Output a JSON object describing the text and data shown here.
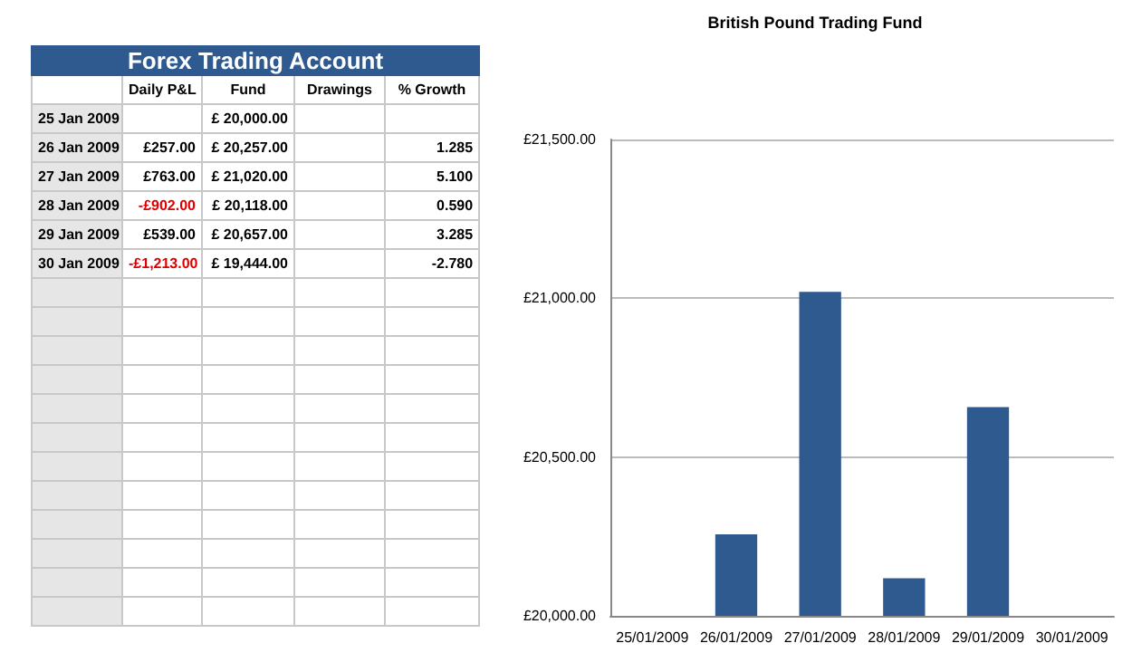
{
  "chart_data": [
    {
      "type": "other",
      "title": "Forex Trading Account",
      "categories": [
        null,
        "Daily P&L",
        "Fund",
        "Drawings",
        "% Growth"
      ],
      "y_categories": [
        "25 Jan 2009",
        "26 Jan 2009",
        "27 Jan 2009",
        "28 Jan 2009",
        "29 Jan 2009",
        "30 Jan 2009"
      ],
      "cell_labels": [
        [
          null,
          "£ 20,000.00",
          null,
          null
        ],
        [
          "£257.00",
          "£ 20,257.00",
          null,
          "1.285"
        ],
        [
          "£763.00",
          "£ 21,020.00",
          null,
          "5.100"
        ],
        [
          "-£902.00",
          "£ 20,118.00",
          null,
          "0.590"
        ],
        [
          "£539.00",
          "£ 20,657.00",
          null,
          "3.285"
        ],
        [
          "-£1,213.00",
          "£ 19,444.00",
          null,
          "-2.780"
        ]
      ]
    },
    {
      "type": "bar",
      "title": "British Pound Trading Fund",
      "categories": [
        "25/01/2009",
        "26/01/2009",
        "27/01/2009",
        "28/01/2009",
        "29/01/2009",
        "30/01/2009"
      ],
      "values": [
        20000,
        20257,
        21020,
        20118,
        20657,
        null
      ],
      "color": "#2e5a8f",
      "ylim": [
        20000,
        21500
      ],
      "yticks": [
        {
          "value": 20000,
          "label": "£20,000.00"
        },
        {
          "value": 20500,
          "label": "£20,500.00"
        },
        {
          "value": 21000,
          "label": "£21,000.00"
        },
        {
          "value": 21500,
          "label": "£21,500.00"
        }
      ],
      "grid": "y"
    }
  ]
}
